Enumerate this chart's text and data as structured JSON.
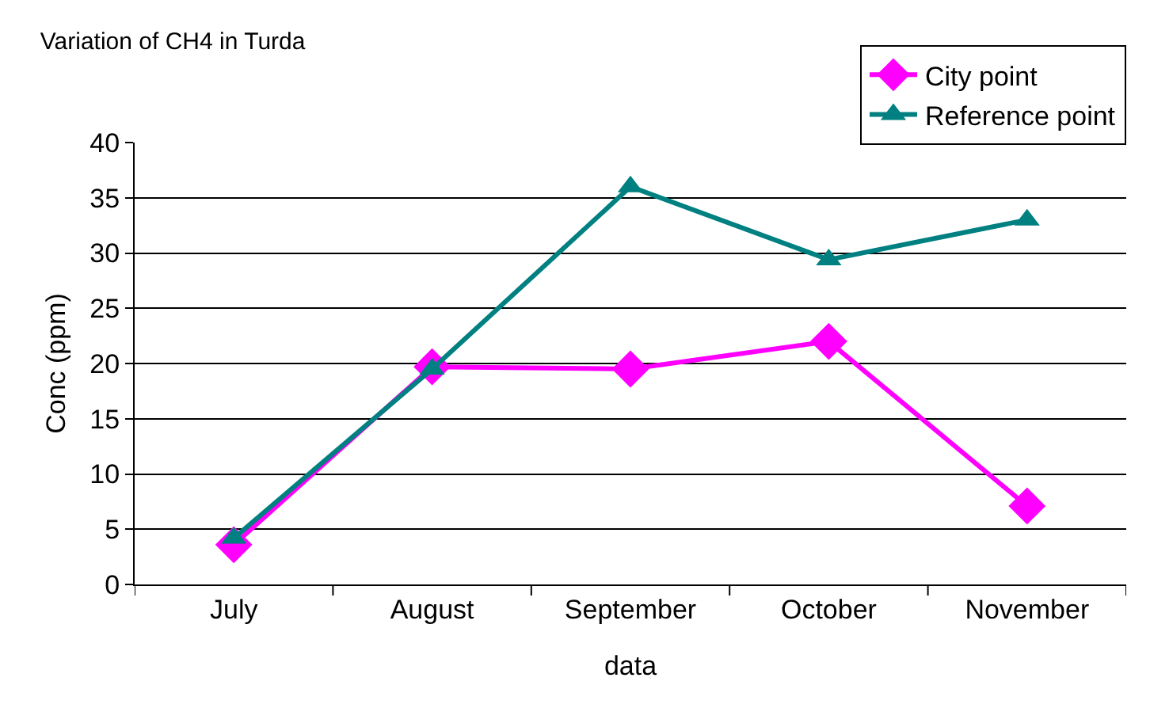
{
  "chart_data": {
    "type": "line",
    "title": "Variation of CH4 in Turda",
    "xlabel": "data",
    "ylabel": "Conc (ppm)",
    "categories": [
      "July",
      "August",
      "September",
      "October",
      "November"
    ],
    "series": [
      {
        "name": "City point",
        "color": "#ff00ff",
        "marker": "diamond",
        "values": [
          3.6,
          19.7,
          19.5,
          22.0,
          7.1
        ]
      },
      {
        "name": "Reference point",
        "color": "#008080",
        "marker": "triangle",
        "values": [
          4.2,
          19.5,
          36.0,
          29.4,
          33.0
        ]
      }
    ],
    "ylim": [
      0,
      40
    ],
    "yticks": [
      0,
      5,
      10,
      15,
      20,
      25,
      30,
      35,
      40
    ],
    "grid": "y",
    "legend": "top right",
    "line_style": "solid"
  }
}
